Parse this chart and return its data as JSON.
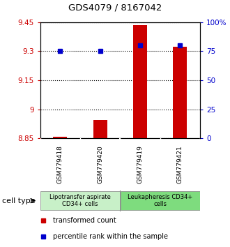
{
  "title": "GDS4079 / 8167042",
  "samples": [
    "GSM779418",
    "GSM779420",
    "GSM779419",
    "GSM779421"
  ],
  "red_values": [
    8.857,
    8.945,
    9.435,
    9.322
  ],
  "blue_values": [
    75,
    75,
    80,
    80
  ],
  "ymin": 8.85,
  "ymax": 9.45,
  "yticks_left": [
    8.85,
    9.0,
    9.15,
    9.3,
    9.45
  ],
  "yticks_right": [
    0,
    25,
    50,
    75,
    100
  ],
  "ytick_labels_left": [
    "8.85",
    "9",
    "9.15",
    "9.3",
    "9.45"
  ],
  "ytick_labels_right": [
    "0",
    "25",
    "50",
    "75",
    "100%"
  ],
  "groups": [
    {
      "label": "Lipotransfer aspirate\nCD34+ cells",
      "samples": [
        0,
        1
      ],
      "color": "#c8f0c8"
    },
    {
      "label": "Leukapheresis CD34+\ncells",
      "samples": [
        2,
        3
      ],
      "color": "#7edc7e"
    }
  ],
  "cell_type_label": "cell type",
  "legend_red": "transformed count",
  "legend_blue": "percentile rank within the sample",
  "bar_color": "#cc0000",
  "dot_color": "#0000cc",
  "bar_bottom": 8.85,
  "bar_width": 0.35,
  "bg_color": "#ffffff",
  "plot_bg": "#ffffff",
  "sample_label_bg": "#cccccc",
  "group_label_bg1": "#c8f0c8",
  "group_label_bg2": "#7edc7e"
}
